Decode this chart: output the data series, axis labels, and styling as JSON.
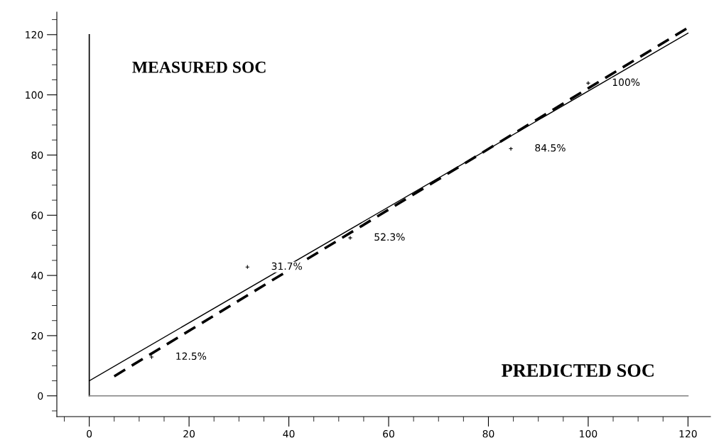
{
  "chart_data": {
    "type": "scatter",
    "xlabel": "PREDICTED SOC",
    "ylabel": "MEASURED SOC",
    "series": [
      {
        "color": "#000000",
        "marker": "cross",
        "x": [
          12.5,
          31.7,
          52.3,
          84.5,
          100
        ],
        "values": [
          12.9,
          42.8,
          52.5,
          82.1,
          103.9
        ]
      },
      {
        "type": "line",
        "color": "#000000",
        "line_style": "solid",
        "x": [
          0,
          120
        ],
        "values": [
          5,
          120.5
        ]
      },
      {
        "type": "line",
        "color": "#000000",
        "line_style": "dashed",
        "x": [
          5,
          120
        ],
        "values": [
          6.5,
          122.3
        ]
      }
    ],
    "annotations": [
      {
        "text": "12.5%",
        "x": 12.5,
        "y": 12.9
      },
      {
        "text": "31.7%",
        "x": 31.7,
        "y": 42.8
      },
      {
        "text": "52.3%",
        "x": 52.3,
        "y": 52.5
      },
      {
        "text": "84.5%",
        "x": 84.5,
        "y": 82.1
      },
      {
        "text": "100%",
        "x": 100,
        "y": 103.9
      }
    ],
    "ref_lines": [
      {
        "axis": "x",
        "value": 0,
        "color": "#000000"
      },
      {
        "axis": "y",
        "value": 0,
        "color": "#808080"
      }
    ],
    "xlim": [
      -6.5,
      124.5
    ],
    "ylim": [
      -6.9,
      127.5
    ],
    "xticks": [
      0,
      20,
      40,
      60,
      80,
      100,
      120
    ],
    "yticks": [
      0,
      20,
      40,
      60,
      80,
      100,
      120
    ],
    "grid": false,
    "legend": false
  }
}
